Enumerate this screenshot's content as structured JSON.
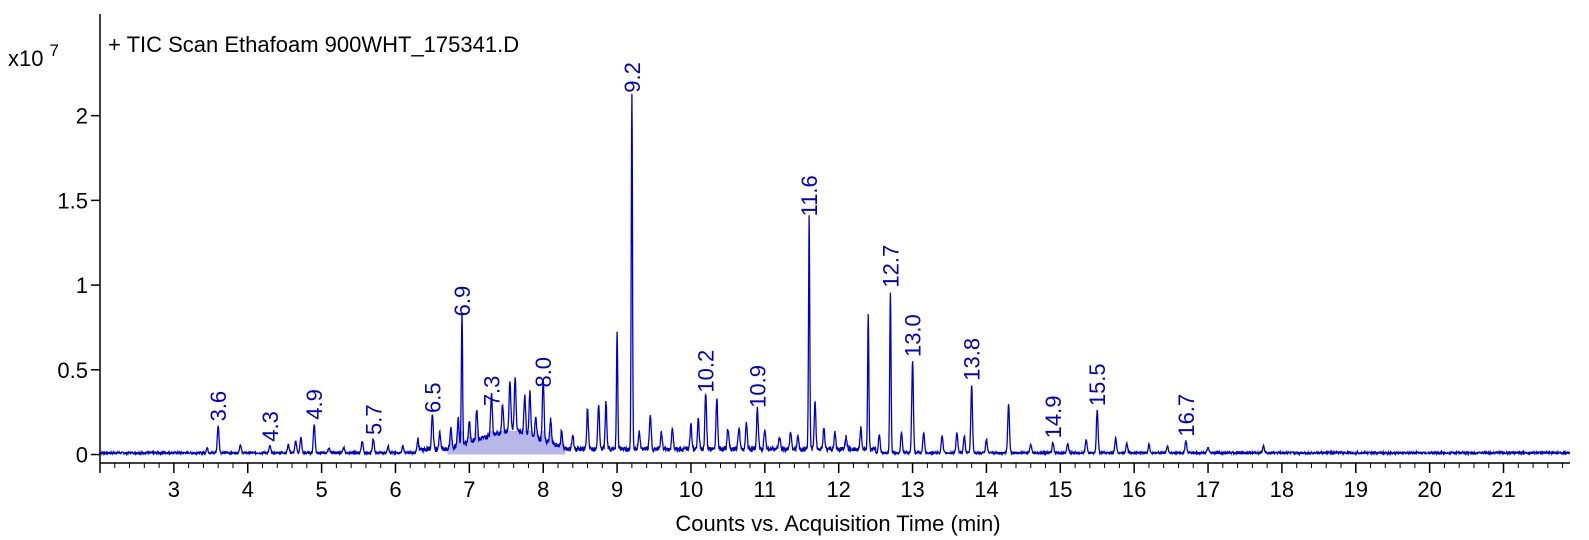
{
  "chart_data": {
    "type": "line",
    "title": "+ TIC Scan Ethafoam 900WHT_175341.D",
    "xlabel": "Counts vs. Acquisition Time (min)",
    "ylabel": "",
    "y_multiplier_label": "x10",
    "y_multiplier_exponent": "7",
    "xlim": [
      2.0,
      21.9
    ],
    "ylim": [
      -0.05,
      2.6
    ],
    "x_ticks": [
      3,
      4,
      5,
      6,
      7,
      8,
      9,
      10,
      11,
      12,
      13,
      14,
      15,
      16,
      17,
      18,
      19,
      20,
      21
    ],
    "y_ticks": [
      0,
      0.5,
      1,
      1.5,
      2
    ],
    "y_tick_labels": [
      "0",
      "0.5",
      "1",
      "1.5",
      "2"
    ],
    "grid": false,
    "line_color": "#0000cc",
    "fill_color": "#b8b8e8",
    "baseline": 0.01,
    "peaks": [
      {
        "x": 3.45,
        "y": 0.03
      },
      {
        "x": 3.6,
        "y": 0.16
      },
      {
        "x": 3.9,
        "y": 0.05
      },
      {
        "x": 4.3,
        "y": 0.04
      },
      {
        "x": 4.55,
        "y": 0.05
      },
      {
        "x": 4.65,
        "y": 0.07
      },
      {
        "x": 4.72,
        "y": 0.09
      },
      {
        "x": 4.9,
        "y": 0.17
      },
      {
        "x": 5.1,
        "y": 0.03
      },
      {
        "x": 5.3,
        "y": 0.03
      },
      {
        "x": 5.55,
        "y": 0.07
      },
      {
        "x": 5.7,
        "y": 0.08
      },
      {
        "x": 5.9,
        "y": 0.04
      },
      {
        "x": 6.1,
        "y": 0.04
      },
      {
        "x": 6.3,
        "y": 0.06
      },
      {
        "x": 6.5,
        "y": 0.21
      },
      {
        "x": 6.6,
        "y": 0.1
      },
      {
        "x": 6.75,
        "y": 0.12
      },
      {
        "x": 6.85,
        "y": 0.16
      },
      {
        "x": 6.9,
        "y": 0.78
      },
      {
        "x": 7.0,
        "y": 0.13
      },
      {
        "x": 7.1,
        "y": 0.18
      },
      {
        "x": 7.3,
        "y": 0.25
      },
      {
        "x": 7.45,
        "y": 0.16
      },
      {
        "x": 7.55,
        "y": 0.28
      },
      {
        "x": 7.62,
        "y": 0.32
      },
      {
        "x": 7.75,
        "y": 0.22
      },
      {
        "x": 7.82,
        "y": 0.25
      },
      {
        "x": 7.9,
        "y": 0.12
      },
      {
        "x": 8.0,
        "y": 0.36
      },
      {
        "x": 8.1,
        "y": 0.14
      },
      {
        "x": 8.25,
        "y": 0.1
      },
      {
        "x": 8.4,
        "y": 0.08
      },
      {
        "x": 8.6,
        "y": 0.24
      },
      {
        "x": 8.75,
        "y": 0.26
      },
      {
        "x": 8.85,
        "y": 0.28
      },
      {
        "x": 9.0,
        "y": 0.69
      },
      {
        "x": 9.2,
        "y": 2.1
      },
      {
        "x": 9.3,
        "y": 0.1
      },
      {
        "x": 9.45,
        "y": 0.2
      },
      {
        "x": 9.6,
        "y": 0.1
      },
      {
        "x": 9.75,
        "y": 0.12
      },
      {
        "x": 10.0,
        "y": 0.15
      },
      {
        "x": 10.1,
        "y": 0.18
      },
      {
        "x": 10.2,
        "y": 0.33
      },
      {
        "x": 10.35,
        "y": 0.3
      },
      {
        "x": 10.5,
        "y": 0.12
      },
      {
        "x": 10.65,
        "y": 0.13
      },
      {
        "x": 10.75,
        "y": 0.16
      },
      {
        "x": 10.9,
        "y": 0.24
      },
      {
        "x": 11.0,
        "y": 0.12
      },
      {
        "x": 11.2,
        "y": 0.07
      },
      {
        "x": 11.35,
        "y": 0.1
      },
      {
        "x": 11.45,
        "y": 0.08
      },
      {
        "x": 11.6,
        "y": 1.37
      },
      {
        "x": 11.68,
        "y": 0.28
      },
      {
        "x": 11.8,
        "y": 0.12
      },
      {
        "x": 11.95,
        "y": 0.1
      },
      {
        "x": 12.1,
        "y": 0.07
      },
      {
        "x": 12.3,
        "y": 0.12
      },
      {
        "x": 12.4,
        "y": 0.8
      },
      {
        "x": 12.55,
        "y": 0.11
      },
      {
        "x": 12.7,
        "y": 0.95
      },
      {
        "x": 12.85,
        "y": 0.12
      },
      {
        "x": 13.0,
        "y": 0.54
      },
      {
        "x": 13.15,
        "y": 0.12
      },
      {
        "x": 13.4,
        "y": 0.1
      },
      {
        "x": 13.6,
        "y": 0.12
      },
      {
        "x": 13.7,
        "y": 0.1
      },
      {
        "x": 13.8,
        "y": 0.4
      },
      {
        "x": 14.0,
        "y": 0.08
      },
      {
        "x": 14.3,
        "y": 0.29
      },
      {
        "x": 14.6,
        "y": 0.05
      },
      {
        "x": 14.9,
        "y": 0.06
      },
      {
        "x": 15.1,
        "y": 0.05
      },
      {
        "x": 15.35,
        "y": 0.08
      },
      {
        "x": 15.5,
        "y": 0.25
      },
      {
        "x": 15.75,
        "y": 0.09
      },
      {
        "x": 15.9,
        "y": 0.06
      },
      {
        "x": 16.2,
        "y": 0.05
      },
      {
        "x": 16.45,
        "y": 0.04
      },
      {
        "x": 16.7,
        "y": 0.07
      },
      {
        "x": 17.0,
        "y": 0.03
      },
      {
        "x": 17.75,
        "y": 0.04
      }
    ],
    "labeled_peaks": [
      {
        "label": "3.6",
        "x": 3.6,
        "y": 0.16
      },
      {
        "label": "4.3",
        "x": 4.3,
        "y": 0.04
      },
      {
        "label": "4.9",
        "x": 4.9,
        "y": 0.17
      },
      {
        "label": "5.7",
        "x": 5.7,
        "y": 0.08
      },
      {
        "label": "6.5",
        "x": 6.5,
        "y": 0.21
      },
      {
        "label": "6.9",
        "x": 6.9,
        "y": 0.78
      },
      {
        "label": "7.3",
        "x": 7.3,
        "y": 0.25
      },
      {
        "label": "8.0",
        "x": 8.0,
        "y": 0.36
      },
      {
        "label": "9.2",
        "x": 9.2,
        "y": 2.1
      },
      {
        "label": "10.2",
        "x": 10.2,
        "y": 0.33
      },
      {
        "label": "10.9",
        "x": 10.9,
        "y": 0.24
      },
      {
        "label": "11.6",
        "x": 11.6,
        "y": 1.37
      },
      {
        "label": "12.7",
        "x": 12.7,
        "y": 0.95
      },
      {
        "label": "13.0",
        "x": 13.0,
        "y": 0.54
      },
      {
        "label": "13.8",
        "x": 13.8,
        "y": 0.4
      },
      {
        "label": "14.9",
        "x": 14.9,
        "y": 0.06
      },
      {
        "label": "15.5",
        "x": 15.5,
        "y": 0.25
      },
      {
        "label": "16.7",
        "x": 16.7,
        "y": 0.07
      }
    ],
    "hump": {
      "x_start": 6.7,
      "x_peak": 7.6,
      "x_end": 8.3,
      "height": 0.12
    }
  }
}
